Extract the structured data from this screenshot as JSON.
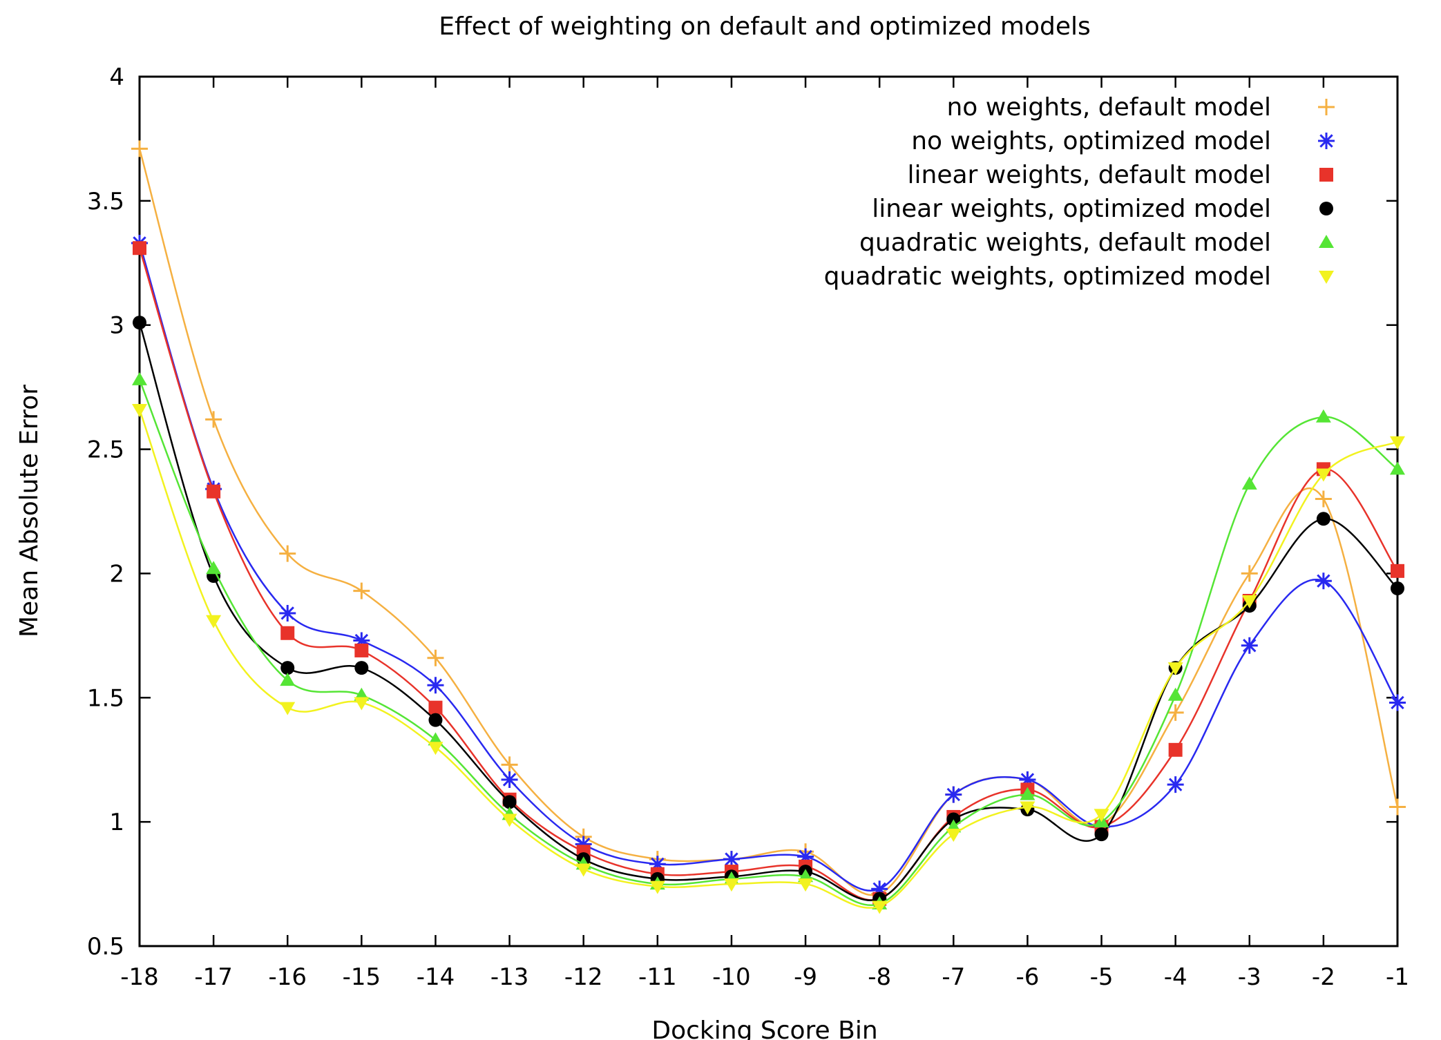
{
  "chart_data": {
    "type": "line",
    "title": "Effect of weighting on default and optimized models",
    "xlabel": "Docking Score Bin",
    "ylabel": "Mean Absolute Error",
    "xlim": [
      -18,
      -1
    ],
    "ylim": [
      0.5,
      4
    ],
    "x": [
      -18,
      -17,
      -16,
      -15,
      -14,
      -13,
      -12,
      -11,
      -10,
      -9,
      -8,
      -7,
      -6,
      -5,
      -4,
      -3,
      -2,
      -1
    ],
    "x_ticks": [
      "-18",
      "-17",
      "-16",
      "-15",
      "-14",
      "-13",
      "-12",
      "-11",
      "-10",
      "-9",
      "-8",
      "-7",
      "-6",
      "-5",
      "-4",
      "-3",
      "-2",
      "-1"
    ],
    "y_ticks": [
      "0.5",
      "1",
      "1.5",
      "2",
      "2.5",
      "3",
      "3.5",
      "4"
    ],
    "legend_position": "top-right",
    "grid": false,
    "smoothed": true,
    "series": [
      {
        "name": "no weights, default model",
        "color": "#f5b041",
        "marker": "plus",
        "values": [
          3.71,
          2.62,
          2.08,
          1.93,
          1.66,
          1.23,
          0.94,
          0.85,
          0.85,
          0.88,
          0.71,
          1.11,
          1.17,
          0.99,
          1.44,
          2.0,
          2.3,
          1.06
        ]
      },
      {
        "name": "no weights, optimized model",
        "color": "#2929f0",
        "marker": "star",
        "values": [
          3.33,
          2.34,
          1.84,
          1.73,
          1.55,
          1.17,
          0.91,
          0.83,
          0.85,
          0.86,
          0.73,
          1.11,
          1.17,
          0.98,
          1.15,
          1.71,
          1.97,
          1.48
        ]
      },
      {
        "name": "linear weights, default model",
        "color": "#e8332a",
        "marker": "square",
        "values": [
          3.31,
          2.33,
          1.76,
          1.69,
          1.46,
          1.09,
          0.88,
          0.79,
          0.8,
          0.82,
          0.69,
          1.02,
          1.13,
          0.98,
          1.29,
          1.89,
          2.42,
          2.01
        ]
      },
      {
        "name": "linear weights, optimized model",
        "color": "#000000",
        "marker": "circle",
        "values": [
          3.01,
          1.99,
          1.62,
          1.62,
          1.41,
          1.08,
          0.85,
          0.77,
          0.78,
          0.8,
          0.69,
          1.01,
          1.05,
          0.95,
          1.62,
          1.87,
          2.22,
          1.94
        ]
      },
      {
        "name": "quadratic weights, default model",
        "color": "#55e535",
        "marker": "triangle-up",
        "values": [
          2.78,
          2.02,
          1.57,
          1.51,
          1.33,
          1.03,
          0.83,
          0.75,
          0.77,
          0.78,
          0.67,
          0.98,
          1.11,
          1.0,
          1.51,
          2.36,
          2.63,
          2.42
        ]
      },
      {
        "name": "quadratic weights, optimized model",
        "color": "#f2f21f",
        "marker": "triangle-down",
        "values": [
          2.66,
          1.81,
          1.46,
          1.48,
          1.3,
          1.01,
          0.81,
          0.74,
          0.75,
          0.75,
          0.66,
          0.95,
          1.06,
          1.03,
          1.62,
          1.89,
          2.4,
          2.53
        ]
      }
    ]
  }
}
